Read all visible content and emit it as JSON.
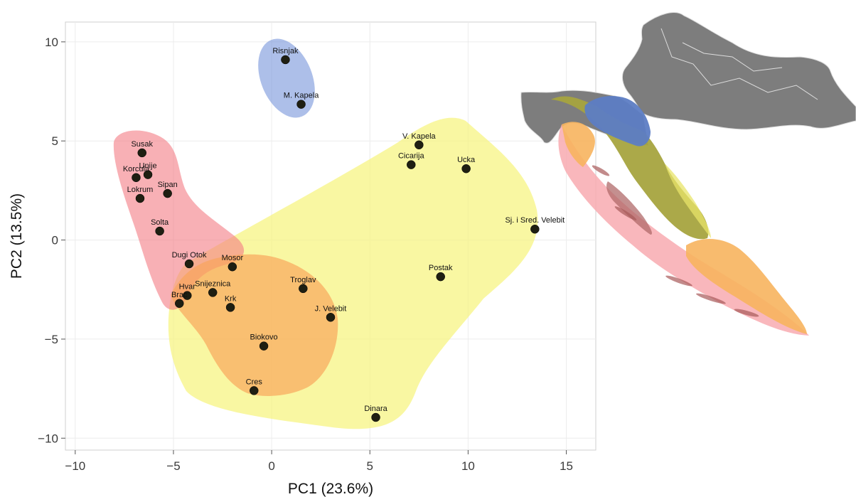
{
  "chart_data": {
    "type": "scatter",
    "title": "",
    "xlabel": "PC1 (23.6%)",
    "ylabel": "PC2 (13.5%)",
    "xlim": [
      -10.5,
      16.5
    ],
    "ylim": [
      -10.6,
      11.0
    ],
    "xticks": [
      -10,
      -5,
      0,
      5,
      10,
      15
    ],
    "yticks": [
      -10,
      -5,
      0,
      5,
      10
    ],
    "xtick_labels": [
      "−10",
      "−5",
      "0",
      "5",
      "10",
      "15"
    ],
    "ytick_labels": [
      "−10",
      "−5",
      "0",
      "5",
      "10"
    ],
    "grid": true,
    "legend": "none",
    "groups": [
      {
        "id": "yellow",
        "color": "#f5f37a"
      },
      {
        "id": "red",
        "color": "#f47c84"
      },
      {
        "id": "orange",
        "color": "#f9a45a"
      },
      {
        "id": "blue",
        "color": "#7b98dc"
      }
    ],
    "points": [
      {
        "label": "Risnjak",
        "x": 0.7,
        "y": 9.1,
        "group": "blue"
      },
      {
        "label": "M. Kapela",
        "x": 1.5,
        "y": 6.85,
        "group": "blue"
      },
      {
        "label": "V. Kapela",
        "x": 7.5,
        "y": 4.8,
        "group": "yellow"
      },
      {
        "label": "Cicarija",
        "x": 7.1,
        "y": 3.8,
        "group": "yellow"
      },
      {
        "label": "Ucka",
        "x": 9.9,
        "y": 3.6,
        "group": "yellow"
      },
      {
        "label": "Sj. i Sred. Velebit",
        "x": 13.4,
        "y": 0.55,
        "group": "yellow"
      },
      {
        "label": "Postak",
        "x": 8.6,
        "y": -1.85,
        "group": "yellow"
      },
      {
        "label": "Dinara",
        "x": 5.3,
        "y": -8.95,
        "group": "yellow"
      },
      {
        "label": "Susak",
        "x": -6.6,
        "y": 4.4,
        "group": "red"
      },
      {
        "label": "Unije",
        "x": -6.3,
        "y": 3.3,
        "group": "red"
      },
      {
        "label": "Korcula",
        "x": -6.9,
        "y": 3.15,
        "group": "red"
      },
      {
        "label": "Sipan",
        "x": -5.3,
        "y": 2.35,
        "group": "red"
      },
      {
        "label": "Lokrum",
        "x": -6.7,
        "y": 2.1,
        "group": "red"
      },
      {
        "label": "Solta",
        "x": -5.7,
        "y": 0.45,
        "group": "red"
      },
      {
        "label": "Dugi Otok",
        "x": -4.2,
        "y": -1.2,
        "group": "red"
      },
      {
        "label": "Hvar",
        "x": -4.3,
        "y": -2.8,
        "group": "red"
      },
      {
        "label": "Brac",
        "x": -4.7,
        "y": -3.2,
        "group": "red"
      },
      {
        "label": "Mosor",
        "x": -2.0,
        "y": -1.35,
        "group": "orange"
      },
      {
        "label": "Snijeznica",
        "x": -3.0,
        "y": -2.65,
        "group": "orange"
      },
      {
        "label": "Krk",
        "x": -2.1,
        "y": -3.4,
        "group": "orange"
      },
      {
        "label": "Troglav",
        "x": 1.6,
        "y": -2.45,
        "group": "orange"
      },
      {
        "label": "J. Velebit",
        "x": 3.0,
        "y": -3.9,
        "group": "orange"
      },
      {
        "label": "Biokovo",
        "x": -0.4,
        "y": -5.35,
        "group": "orange"
      },
      {
        "label": "Cres",
        "x": -0.9,
        "y": -7.6,
        "group": "orange"
      }
    ]
  },
  "map": {
    "country_color": "#7d7d7d",
    "border_color": "#dddddd"
  }
}
